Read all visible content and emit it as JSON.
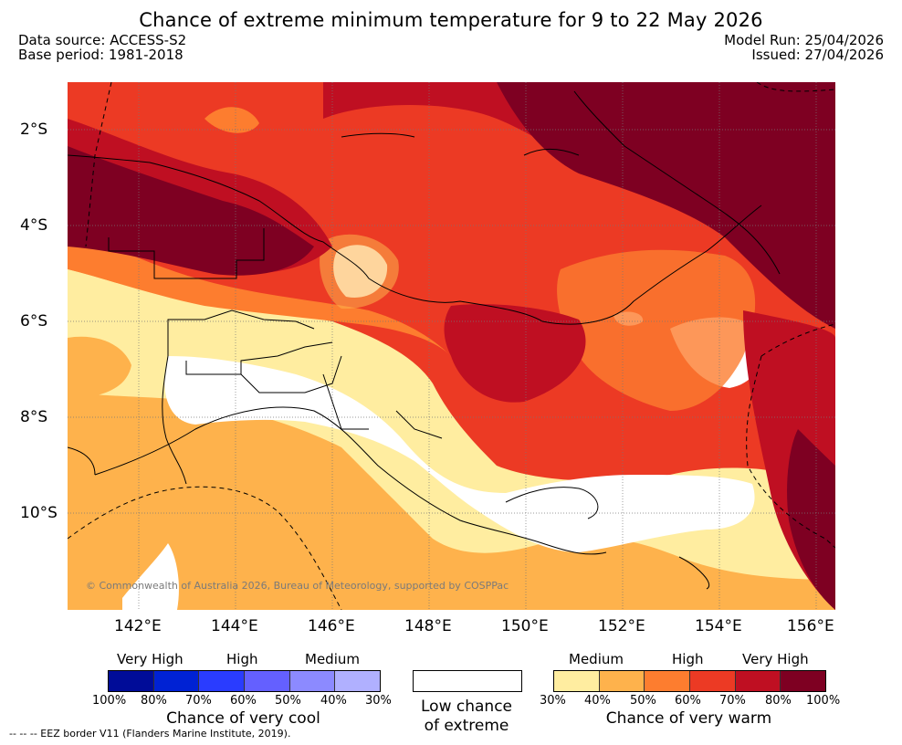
{
  "header": {
    "title": "Chance of extreme minimum temperature for 9 to 22 May 2026",
    "data_source": "Data source: ACCESS-S2",
    "base_period": "Base period: 1981-2018",
    "model_run": "Model Run: 25/04/2026",
    "issued": "Issued: 27/04/2026"
  },
  "map": {
    "copyright": "© Commonwealth of Australia 2026, Bureau of Meteorology, supported by COSPPac",
    "lat_ticks": [
      "2°S",
      "4°S",
      "6°S",
      "8°S",
      "10°S"
    ],
    "lon_ticks": [
      "142°E",
      "144°E",
      "146°E",
      "148°E",
      "150°E",
      "152°E",
      "154°E",
      "156°E"
    ]
  },
  "legend": {
    "cool": {
      "levels": [
        "Very High",
        "High",
        "Medium"
      ],
      "ticks": [
        "100%",
        "80%",
        "70%",
        "60%",
        "50%",
        "40%",
        "30%"
      ],
      "colors": [
        "#000c98",
        "#0022d4",
        "#2a3cff",
        "#6460ff",
        "#8c8aff",
        "#b0b0ff"
      ],
      "caption": "Chance of very cool"
    },
    "low": {
      "line1": "Low chance",
      "line2": "of extreme"
    },
    "warm": {
      "levels": [
        "Medium",
        "High",
        "Very High"
      ],
      "ticks": [
        "30%",
        "40%",
        "50%",
        "60%",
        "70%",
        "80%",
        "100%"
      ],
      "colors": [
        "#ffeda0",
        "#feb24c",
        "#fd7d2f",
        "#ec3a24",
        "#bf0f22",
        "#7e0022"
      ],
      "caption": "Chance of very warm"
    }
  },
  "footer": {
    "eez": "--  --  -- EEZ border V11 (Flanders Marine Institute, 2019)."
  }
}
